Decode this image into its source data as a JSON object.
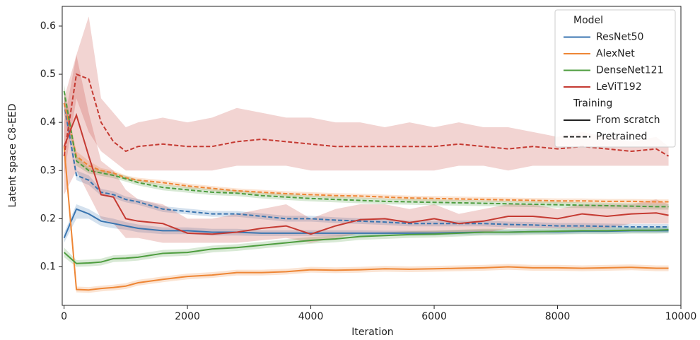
{
  "chart_data": {
    "type": "line",
    "xlabel": "Iteration",
    "ylabel": "Latent space C8-EED",
    "xlim": [
      -30,
      10000
    ],
    "ylim": [
      0.02,
      0.641
    ],
    "xticks": [
      0,
      2000,
      4000,
      6000,
      8000,
      10000
    ],
    "yticks": [
      0.1,
      0.2,
      0.3,
      0.4,
      0.5,
      0.6
    ],
    "x": [
      0,
      200,
      400,
      600,
      800,
      1000,
      1200,
      1600,
      2000,
      2400,
      2800,
      3200,
      3600,
      4000,
      4400,
      4800,
      5200,
      5600,
      6000,
      6400,
      6800,
      7200,
      7600,
      8000,
      8400,
      8800,
      9200,
      9600,
      9800
    ],
    "legend": {
      "position": "upper right",
      "groups": [
        {
          "title": "Model",
          "entries": [
            {
              "name": "ResNet50",
              "color": "#3a75b0"
            },
            {
              "name": "AlexNet",
              "color": "#ee8635"
            },
            {
              "name": "DenseNet121",
              "color": "#4e9d3f"
            },
            {
              "name": "LeViT192",
              "color": "#c53a32"
            }
          ]
        },
        {
          "title": "Training",
          "entries": [
            {
              "name": "From scratch",
              "dash": "solid"
            },
            {
              "name": "Pretrained",
              "dash": "dashed"
            }
          ]
        }
      ]
    },
    "series": [
      {
        "model": "ResNet50",
        "training": "From scratch",
        "values": [
          0.16,
          0.22,
          0.21,
          0.195,
          0.19,
          0.185,
          0.18,
          0.175,
          0.175,
          0.172,
          0.172,
          0.17,
          0.17,
          0.17,
          0.17,
          0.17,
          0.17,
          0.17,
          0.17,
          0.171,
          0.172,
          0.172,
          0.173,
          0.173,
          0.174,
          0.174,
          0.175,
          0.175,
          0.175
        ],
        "lower": [
          0.15,
          0.2,
          0.2,
          0.185,
          0.18,
          0.177,
          0.172,
          0.168,
          0.168,
          0.165,
          0.165,
          0.164,
          0.164,
          0.164,
          0.164,
          0.164,
          0.165,
          0.165,
          0.165,
          0.166,
          0.167,
          0.167,
          0.168,
          0.168,
          0.169,
          0.169,
          0.17,
          0.17,
          0.17
        ],
        "upper": [
          0.17,
          0.23,
          0.22,
          0.205,
          0.2,
          0.193,
          0.188,
          0.182,
          0.182,
          0.179,
          0.179,
          0.176,
          0.176,
          0.176,
          0.176,
          0.176,
          0.175,
          0.175,
          0.175,
          0.176,
          0.177,
          0.177,
          0.178,
          0.178,
          0.179,
          0.179,
          0.18,
          0.18,
          0.18
        ]
      },
      {
        "model": "ResNet50",
        "training": "Pretrained",
        "values": [
          0.44,
          0.29,
          0.28,
          0.255,
          0.25,
          0.24,
          0.235,
          0.22,
          0.215,
          0.21,
          0.21,
          0.205,
          0.2,
          0.2,
          0.197,
          0.195,
          0.193,
          0.19,
          0.19,
          0.19,
          0.19,
          0.188,
          0.187,
          0.185,
          0.185,
          0.184,
          0.183,
          0.183,
          0.183
        ],
        "lower": [
          0.42,
          0.28,
          0.27,
          0.248,
          0.243,
          0.234,
          0.229,
          0.214,
          0.209,
          0.204,
          0.204,
          0.199,
          0.194,
          0.194,
          0.191,
          0.189,
          0.187,
          0.184,
          0.184,
          0.184,
          0.184,
          0.182,
          0.181,
          0.179,
          0.179,
          0.178,
          0.177,
          0.177,
          0.177
        ],
        "upper": [
          0.46,
          0.3,
          0.29,
          0.262,
          0.257,
          0.246,
          0.241,
          0.226,
          0.221,
          0.216,
          0.216,
          0.211,
          0.206,
          0.206,
          0.203,
          0.201,
          0.199,
          0.196,
          0.196,
          0.196,
          0.196,
          0.194,
          0.193,
          0.191,
          0.191,
          0.19,
          0.189,
          0.189,
          0.189
        ]
      },
      {
        "model": "AlexNet",
        "training": "From scratch",
        "values": [
          0.35,
          0.053,
          0.052,
          0.055,
          0.057,
          0.06,
          0.067,
          0.074,
          0.08,
          0.083,
          0.088,
          0.088,
          0.09,
          0.094,
          0.093,
          0.094,
          0.096,
          0.095,
          0.096,
          0.097,
          0.098,
          0.1,
          0.098,
          0.098,
          0.097,
          0.098,
          0.099,
          0.097,
          0.097
        ],
        "lower": [
          0.33,
          0.047,
          0.046,
          0.049,
          0.051,
          0.054,
          0.061,
          0.068,
          0.074,
          0.077,
          0.082,
          0.082,
          0.084,
          0.088,
          0.087,
          0.088,
          0.09,
          0.089,
          0.09,
          0.091,
          0.092,
          0.094,
          0.092,
          0.092,
          0.091,
          0.092,
          0.093,
          0.091,
          0.091
        ],
        "upper": [
          0.37,
          0.059,
          0.058,
          0.061,
          0.063,
          0.066,
          0.073,
          0.08,
          0.086,
          0.089,
          0.094,
          0.094,
          0.096,
          0.1,
          0.099,
          0.1,
          0.102,
          0.101,
          0.102,
          0.103,
          0.104,
          0.106,
          0.104,
          0.104,
          0.103,
          0.104,
          0.105,
          0.103,
          0.103
        ]
      },
      {
        "model": "AlexNet",
        "training": "Pretrained",
        "values": [
          0.44,
          0.33,
          0.31,
          0.3,
          0.295,
          0.285,
          0.28,
          0.275,
          0.268,
          0.263,
          0.258,
          0.255,
          0.252,
          0.25,
          0.248,
          0.247,
          0.245,
          0.243,
          0.242,
          0.241,
          0.24,
          0.239,
          0.238,
          0.237,
          0.237,
          0.236,
          0.236,
          0.235,
          0.235
        ],
        "lower": [
          0.42,
          0.32,
          0.3,
          0.295,
          0.29,
          0.28,
          0.275,
          0.27,
          0.263,
          0.258,
          0.253,
          0.25,
          0.247,
          0.245,
          0.243,
          0.242,
          0.24,
          0.238,
          0.237,
          0.236,
          0.235,
          0.234,
          0.233,
          0.232,
          0.232,
          0.231,
          0.231,
          0.23,
          0.23
        ],
        "upper": [
          0.46,
          0.34,
          0.32,
          0.305,
          0.3,
          0.29,
          0.285,
          0.28,
          0.273,
          0.268,
          0.263,
          0.26,
          0.257,
          0.255,
          0.253,
          0.252,
          0.25,
          0.248,
          0.247,
          0.246,
          0.245,
          0.244,
          0.243,
          0.242,
          0.242,
          0.241,
          0.241,
          0.24,
          0.24
        ]
      },
      {
        "model": "DenseNet121",
        "training": "From scratch",
        "values": [
          0.13,
          0.107,
          0.108,
          0.11,
          0.117,
          0.118,
          0.12,
          0.128,
          0.13,
          0.137,
          0.14,
          0.145,
          0.15,
          0.155,
          0.158,
          0.163,
          0.165,
          0.167,
          0.168,
          0.17,
          0.172,
          0.172,
          0.173,
          0.174,
          0.175,
          0.175,
          0.176,
          0.176,
          0.177
        ],
        "lower": [
          0.12,
          0.1,
          0.101,
          0.103,
          0.11,
          0.111,
          0.113,
          0.121,
          0.123,
          0.13,
          0.133,
          0.138,
          0.143,
          0.148,
          0.151,
          0.156,
          0.158,
          0.16,
          0.161,
          0.163,
          0.165,
          0.165,
          0.166,
          0.167,
          0.168,
          0.168,
          0.169,
          0.169,
          0.17
        ],
        "upper": [
          0.14,
          0.114,
          0.115,
          0.117,
          0.124,
          0.125,
          0.127,
          0.135,
          0.137,
          0.144,
          0.147,
          0.152,
          0.157,
          0.162,
          0.165,
          0.17,
          0.172,
          0.174,
          0.175,
          0.177,
          0.179,
          0.179,
          0.18,
          0.181,
          0.182,
          0.182,
          0.183,
          0.183,
          0.184
        ]
      },
      {
        "model": "DenseNet121",
        "training": "Pretrained",
        "values": [
          0.465,
          0.32,
          0.3,
          0.295,
          0.29,
          0.283,
          0.275,
          0.265,
          0.26,
          0.255,
          0.253,
          0.248,
          0.245,
          0.242,
          0.24,
          0.238,
          0.236,
          0.235,
          0.234,
          0.233,
          0.232,
          0.231,
          0.23,
          0.229,
          0.228,
          0.227,
          0.226,
          0.225,
          0.225
        ],
        "lower": [
          0.45,
          0.31,
          0.294,
          0.289,
          0.284,
          0.277,
          0.269,
          0.259,
          0.254,
          0.249,
          0.247,
          0.242,
          0.239,
          0.236,
          0.234,
          0.232,
          0.23,
          0.229,
          0.228,
          0.227,
          0.226,
          0.225,
          0.224,
          0.223,
          0.222,
          0.221,
          0.22,
          0.219,
          0.219
        ],
        "upper": [
          0.48,
          0.33,
          0.306,
          0.301,
          0.296,
          0.289,
          0.281,
          0.271,
          0.266,
          0.261,
          0.259,
          0.254,
          0.251,
          0.248,
          0.246,
          0.244,
          0.242,
          0.241,
          0.24,
          0.239,
          0.238,
          0.237,
          0.236,
          0.235,
          0.234,
          0.233,
          0.232,
          0.231,
          0.231
        ]
      },
      {
        "model": "LeViT192",
        "training": "From scratch",
        "values": [
          0.35,
          0.415,
          0.33,
          0.25,
          0.245,
          0.2,
          0.195,
          0.19,
          0.17,
          0.168,
          0.172,
          0.18,
          0.185,
          0.168,
          0.185,
          0.198,
          0.2,
          0.192,
          0.2,
          0.19,
          0.195,
          0.205,
          0.205,
          0.2,
          0.21,
          0.205,
          0.21,
          0.212,
          0.207
        ],
        "lower": [
          0.25,
          0.3,
          0.25,
          0.2,
          0.19,
          0.16,
          0.16,
          0.15,
          0.15,
          0.15,
          0.15,
          0.155,
          0.16,
          0.15,
          0.16,
          0.17,
          0.17,
          0.17,
          0.17,
          0.17,
          0.17,
          0.18,
          0.18,
          0.18,
          0.18,
          0.18,
          0.19,
          0.19,
          0.19
        ],
        "upper": [
          0.45,
          0.54,
          0.42,
          0.32,
          0.3,
          0.26,
          0.24,
          0.23,
          0.2,
          0.2,
          0.21,
          0.22,
          0.23,
          0.2,
          0.22,
          0.23,
          0.23,
          0.22,
          0.23,
          0.21,
          0.22,
          0.23,
          0.23,
          0.22,
          0.23,
          0.23,
          0.23,
          0.24,
          0.23
        ]
      },
      {
        "model": "LeViT192",
        "training": "Pretrained",
        "values": [
          0.33,
          0.5,
          0.49,
          0.4,
          0.36,
          0.34,
          0.35,
          0.355,
          0.35,
          0.35,
          0.36,
          0.365,
          0.36,
          0.355,
          0.35,
          0.35,
          0.35,
          0.35,
          0.35,
          0.355,
          0.35,
          0.345,
          0.35,
          0.345,
          0.35,
          0.345,
          0.34,
          0.345,
          0.33
        ],
        "lower": [
          0.29,
          0.45,
          0.38,
          0.34,
          0.32,
          0.3,
          0.3,
          0.3,
          0.3,
          0.3,
          0.31,
          0.31,
          0.31,
          0.3,
          0.3,
          0.3,
          0.3,
          0.3,
          0.3,
          0.31,
          0.31,
          0.3,
          0.31,
          0.31,
          0.31,
          0.31,
          0.31,
          0.31,
          0.31
        ],
        "upper": [
          0.4,
          0.54,
          0.62,
          0.45,
          0.42,
          0.39,
          0.4,
          0.41,
          0.4,
          0.41,
          0.43,
          0.42,
          0.41,
          0.41,
          0.4,
          0.4,
          0.39,
          0.4,
          0.39,
          0.4,
          0.39,
          0.39,
          0.38,
          0.37,
          0.38,
          0.37,
          0.36,
          0.37,
          0.35
        ]
      }
    ]
  }
}
